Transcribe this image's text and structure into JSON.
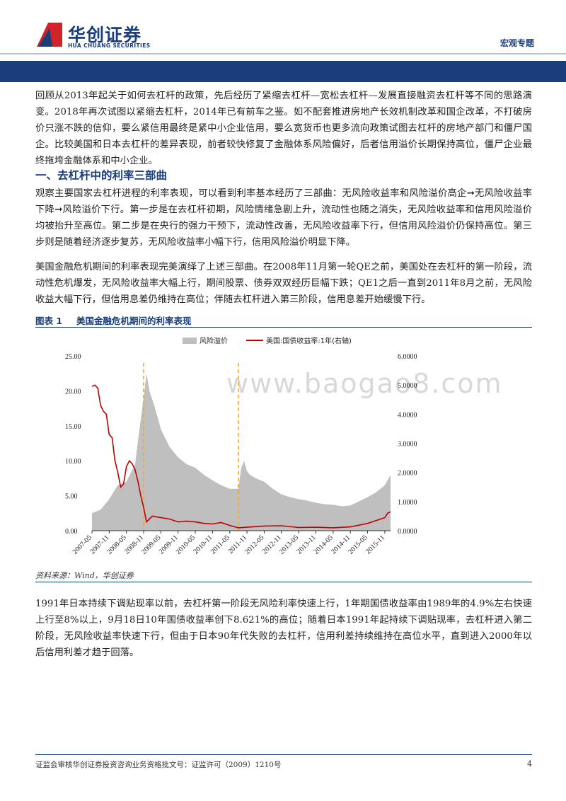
{
  "header": {
    "logo_cn": "华创证券",
    "logo_en": "HUA CHUANG SECURITIES",
    "section_tag": "宏观专题"
  },
  "intro_paragraph": "回顾从2013年起关于如何去杠杆的政策，先后经历了紧缩去杠杆—宽松去杠杆—发展直接融资去杠杆等不同的思路演变。2018年再次试图以紧缩去杠杆，2014年已有前车之鉴。如不配套推进房地产长效机制改革和国企改革，不打破房价只涨不跌的信仰，要么紧信用最终是紧中小企业信用，要么宽货币也更多流向政策试图去杠杆的房地产部门和僵尸国企。比较美国和日本去杠杆的差异表现，前者较快修复了金融体系风险偏好，后者信用溢价长期保持高位，僵尸企业最终拖垮金融体系和中小企业。",
  "section_heading": "一、去杠杆中的利率三部曲",
  "para2": "观察主要国家去杠杆进程的利率表现，可以看到利率基本经历了三部曲：无风险收益率和风险溢价高企➞无风险收益率下降➞风险溢价下行。第一步是在去杠杆初期，风险情绪急剧上升，流动性也随之消失，无风险收益率和信用风险溢价均被抬升至高位。第二步是在央行的强力干预下，流动性改善，无风险收益率下行，但信用风险溢价仍保持高位。第三步则是随着经济逐步复苏，无风险收益率小幅下行，信用风险溢价明显下降。",
  "para3": "美国金融危机期间的利率表现完美演绎了上述三部曲。在2008年11月第一轮QE之前，美国处在去杠杆的第一阶段，流动性危机爆发，无风险收益率大幅上行，期间股票、债券双双经历巨幅下跌；QE1之后一直到2011年8月之前，无风险收益大幅下行，但信用息差仍维持在高位；伴随去杠杆进入第三阶段，信用息差开始缓慢下行。",
  "figure": {
    "number": "图表 1",
    "title": "美国金融危机期间的利率表现",
    "source": "资料来源：Wind，华创证券",
    "watermark": "www.baogao8.com"
  },
  "para4": "1991年日本持续下调贴现率以前，去杠杆第一阶段无风险利率快速上行，1年期国债收益率由1989年的4.9%左右快速上行至8%以上，9月18日10年国债收益率创下8.621%的高位；随着日本1991年起持续下调贴现率，去杠杆进入第二阶段，无风险收益率快速下行，但由于日本90年代失败的去杠杆，信用利差持续维持在高位水平，直到进入2000年以后信用利差才趋于回落。",
  "footer": {
    "disclaimer": "证监会审核华创证券投资咨询业务资格批文号：证监许可（2009）1210号",
    "page_number": "4"
  },
  "colors": {
    "brand_blue": "#1a3d7c",
    "logo_red": "#d2232a",
    "area_gray": "#bfbfbf",
    "line_red": "#c00000",
    "marker_orange": "#f5a623"
  },
  "chart_data": {
    "type": "area",
    "title": "",
    "series": [
      {
        "name": "风险溢价",
        "type": "area",
        "axis": "left",
        "x": [
          "2007-05",
          "2007-08",
          "2007-11",
          "2008-02",
          "2008-05",
          "2008-08",
          "2008-10",
          "2008-11",
          "2008-12",
          "2009-01",
          "2009-03",
          "2009-05",
          "2009-08",
          "2009-11",
          "2010-02",
          "2010-05",
          "2010-08",
          "2010-11",
          "2011-02",
          "2011-05",
          "2011-08",
          "2011-09",
          "2011-10",
          "2011-11",
          "2011-12",
          "2012-02",
          "2012-05",
          "2012-08",
          "2012-11",
          "2013-02",
          "2013-05",
          "2013-08",
          "2013-11",
          "2014-02",
          "2014-05",
          "2014-08",
          "2014-11",
          "2015-02",
          "2015-05",
          "2015-08",
          "2015-11",
          "2016-01"
        ],
        "values": [
          2.5,
          3.0,
          4.5,
          6.5,
          7.0,
          9.5,
          16.0,
          19.0,
          22.5,
          20.0,
          17.5,
          14.5,
          12.0,
          10.5,
          9.5,
          9.0,
          8.0,
          7.2,
          6.5,
          6.0,
          6.0,
          9.0,
          10.0,
          8.5,
          8.0,
          7.5,
          7.0,
          6.0,
          5.2,
          4.8,
          4.5,
          4.3,
          4.0,
          3.8,
          3.7,
          3.5,
          3.6,
          4.2,
          4.8,
          5.5,
          6.5,
          8.0
        ]
      },
      {
        "name": "美国:国债收益率:1年(右轴)",
        "type": "line",
        "axis": "right",
        "x": [
          "2007-05",
          "2007-06",
          "2007-07",
          "2007-08",
          "2007-09",
          "2007-10",
          "2007-11",
          "2007-12",
          "2008-01",
          "2008-02",
          "2008-03",
          "2008-04",
          "2008-05",
          "2008-06",
          "2008-07",
          "2008-08",
          "2008-09",
          "2008-10",
          "2008-11",
          "2008-12",
          "2009-02",
          "2009-05",
          "2009-08",
          "2009-11",
          "2010-02",
          "2010-05",
          "2010-08",
          "2010-11",
          "2011-02",
          "2011-05",
          "2011-08",
          "2011-11",
          "2012-05",
          "2012-11",
          "2013-05",
          "2013-11",
          "2014-05",
          "2014-11",
          "2015-05",
          "2015-08",
          "2015-11",
          "2015-12",
          "2016-01"
        ],
        "values": [
          4.95,
          5.0,
          4.9,
          4.3,
          4.1,
          4.0,
          3.3,
          3.2,
          2.4,
          2.0,
          1.5,
          1.6,
          2.2,
          2.4,
          2.3,
          2.1,
          1.7,
          1.2,
          0.8,
          0.3,
          0.5,
          0.45,
          0.4,
          0.3,
          0.33,
          0.3,
          0.25,
          0.23,
          0.28,
          0.18,
          0.1,
          0.12,
          0.16,
          0.17,
          0.11,
          0.12,
          0.1,
          0.13,
          0.25,
          0.35,
          0.45,
          0.6,
          0.65
        ]
      }
    ],
    "y_left": {
      "min": 0,
      "max": 25,
      "ticks": [
        "0.00",
        "5.00",
        "10.00",
        "15.00",
        "20.00",
        "25.00"
      ]
    },
    "y_right": {
      "min": 0,
      "max": 6,
      "ticks": [
        "0.0000",
        "1.0000",
        "2.0000",
        "3.0000",
        "4.0000",
        "5.0000",
        "6.0000"
      ]
    },
    "x_ticks": [
      "2007-05",
      "2007-11",
      "2008-05",
      "2008-11",
      "2009-05",
      "2009-11",
      "2010-05",
      "2010-11",
      "2011-05",
      "2011-11",
      "2012-05",
      "2012-11",
      "2013-05",
      "2013-11",
      "2014-05",
      "2014-11",
      "2015-05",
      "2015-11"
    ],
    "vertical_markers": [
      "2008-11",
      "2011-08"
    ],
    "legend_position": "top",
    "grid": false
  }
}
